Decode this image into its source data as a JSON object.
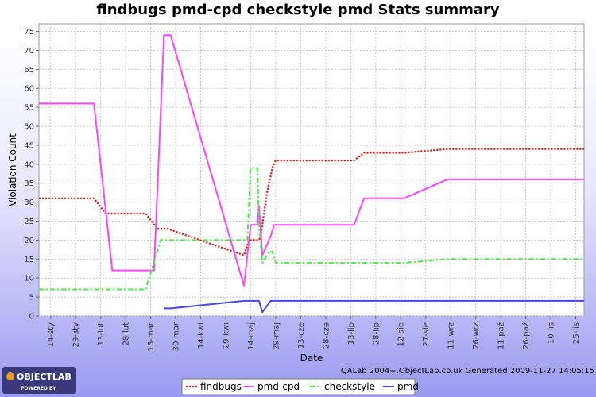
{
  "chart_data": {
    "type": "line",
    "title": "findbugs pmd-cpd checkstyle pmd  Stats summary",
    "xlabel": "Date",
    "ylabel": "Violation Count",
    "ylim": [
      0,
      77
    ],
    "yticks": [
      0,
      5,
      10,
      15,
      20,
      25,
      30,
      35,
      40,
      45,
      50,
      55,
      60,
      65,
      70,
      75
    ],
    "xlim": [
      "2009-01-07",
      "2009-11-30"
    ],
    "x_ticks": [
      {
        "date": "2009-01-14",
        "label": "14-sty"
      },
      {
        "date": "2009-01-29",
        "label": "29-sty"
      },
      {
        "date": "2009-02-13",
        "label": "13-lut"
      },
      {
        "date": "2009-02-28",
        "label": "28-lut"
      },
      {
        "date": "2009-03-15",
        "label": "15-mar"
      },
      {
        "date": "2009-03-30",
        "label": "30-mar"
      },
      {
        "date": "2009-04-14",
        "label": "14-kwi"
      },
      {
        "date": "2009-04-29",
        "label": "29-kwi"
      },
      {
        "date": "2009-05-14",
        "label": "14-maj"
      },
      {
        "date": "2009-05-29",
        "label": "29-maj"
      },
      {
        "date": "2009-06-13",
        "label": "13-cze"
      },
      {
        "date": "2009-06-28",
        "label": "28-cze"
      },
      {
        "date": "2009-07-13",
        "label": "13-lip"
      },
      {
        "date": "2009-07-28",
        "label": "28-lip"
      },
      {
        "date": "2009-08-12",
        "label": "12-sie"
      },
      {
        "date": "2009-08-27",
        "label": "27-sie"
      },
      {
        "date": "2009-09-11",
        "label": "11-wrz"
      },
      {
        "date": "2009-09-26",
        "label": "26-wrz"
      },
      {
        "date": "2009-10-11",
        "label": "11-paź"
      },
      {
        "date": "2009-10-26",
        "label": "26-paź"
      },
      {
        "date": "2009-11-10",
        "label": "10-lis"
      },
      {
        "date": "2009-11-25",
        "label": "25-lis"
      }
    ],
    "grid": true,
    "legend_position": "bottom",
    "series": [
      {
        "name": "findbugs",
        "color": "#ff0000",
        "style": "dotted",
        "points": [
          [
            "2009-01-07",
            31
          ],
          [
            "2009-02-09",
            31
          ],
          [
            "2009-02-16",
            27
          ],
          [
            "2009-03-12",
            27
          ],
          [
            "2009-03-19",
            23
          ],
          [
            "2009-03-25",
            23
          ],
          [
            "2009-05-10",
            16
          ],
          [
            "2009-05-13",
            20
          ],
          [
            "2009-05-19",
            20
          ],
          [
            "2009-05-20",
            21
          ],
          [
            "2009-05-24",
            33
          ],
          [
            "2009-05-27",
            39
          ],
          [
            "2009-05-29",
            41
          ],
          [
            "2009-07-15",
            41
          ],
          [
            "2009-07-21",
            43
          ],
          [
            "2009-08-14",
            43
          ],
          [
            "2009-09-09",
            44
          ],
          [
            "2009-11-30",
            44
          ]
        ]
      },
      {
        "name": "pmd-cpd",
        "color": "#ff44ff",
        "style": "solid",
        "points": [
          [
            "2009-01-07",
            56
          ],
          [
            "2009-02-09",
            56
          ],
          [
            "2009-02-20",
            12
          ],
          [
            "2009-03-17",
            12
          ],
          [
            "2009-03-23",
            74
          ],
          [
            "2009-03-27",
            74
          ],
          [
            "2009-05-10",
            8
          ],
          [
            "2009-05-14",
            24
          ],
          [
            "2009-05-18",
            24
          ],
          [
            "2009-05-19",
            29
          ],
          [
            "2009-05-21",
            16
          ],
          [
            "2009-05-26",
            21
          ],
          [
            "2009-05-28",
            24
          ],
          [
            "2009-07-15",
            24
          ],
          [
            "2009-07-21",
            31
          ],
          [
            "2009-08-14",
            31
          ],
          [
            "2009-09-09",
            36
          ],
          [
            "2009-11-30",
            36
          ]
        ]
      },
      {
        "name": "checkstyle",
        "color": "#44ee44",
        "style": "dashdot",
        "points": [
          [
            "2009-01-07",
            7
          ],
          [
            "2009-03-12",
            7
          ],
          [
            "2009-03-21",
            20
          ],
          [
            "2009-05-12",
            20
          ],
          [
            "2009-05-14",
            39
          ],
          [
            "2009-05-18",
            39
          ],
          [
            "2009-05-19",
            24
          ],
          [
            "2009-05-21",
            14
          ],
          [
            "2009-05-25",
            17
          ],
          [
            "2009-05-27",
            17
          ],
          [
            "2009-05-29",
            14
          ],
          [
            "2009-08-14",
            14
          ],
          [
            "2009-09-09",
            15
          ],
          [
            "2009-11-30",
            15
          ]
        ]
      },
      {
        "name": "pmd",
        "color": "#4444ff",
        "style": "solid",
        "points": [
          [
            "2009-03-23",
            2
          ],
          [
            "2009-03-27",
            2
          ],
          [
            "2009-05-10",
            4
          ],
          [
            "2009-05-19",
            4
          ],
          [
            "2009-05-21",
            1
          ],
          [
            "2009-05-26",
            4
          ],
          [
            "2009-11-30",
            4
          ]
        ]
      }
    ]
  },
  "footer": {
    "credit": "QALab 2004+,ObjectLab.co.uk Generated 2009-11-27 14:05:15",
    "logo_main": "OBJECTLAB",
    "logo_sub": "POWERED BY"
  }
}
